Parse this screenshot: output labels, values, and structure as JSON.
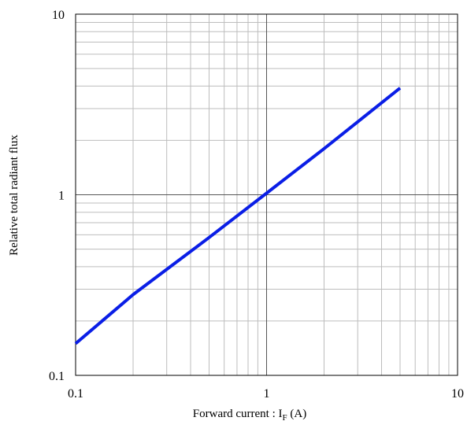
{
  "chart_data": {
    "type": "line",
    "xscale": "log",
    "yscale": "log",
    "xlim": [
      0.1,
      10
    ],
    "ylim": [
      0.1,
      10
    ],
    "xticks": [
      "0.1",
      "1",
      "10"
    ],
    "yticks": [
      "0.1",
      "1",
      "10"
    ],
    "xlabel": {
      "main": "Forward current : I",
      "sub": "F",
      "unit": " (A)"
    },
    "ylabel": "Relative total radiant flux",
    "grid": true,
    "series": [
      {
        "color": "#0a1ee6",
        "x": [
          0.1,
          0.2,
          0.5,
          1,
          2,
          5
        ],
        "y": [
          0.15,
          0.28,
          0.58,
          1.02,
          1.8,
          3.9
        ]
      }
    ]
  }
}
